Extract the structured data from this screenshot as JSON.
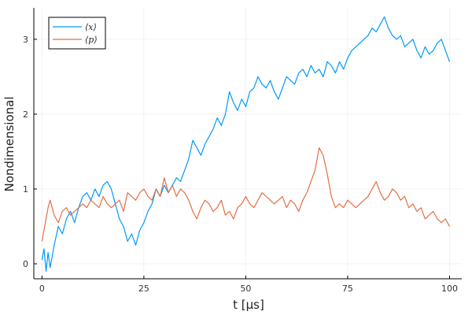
{
  "chart_data": {
    "type": "line",
    "title": "",
    "xlabel": "t [μs]",
    "ylabel": "Nondimensional",
    "xlim": [
      -2,
      103
    ],
    "ylim": [
      -0.2,
      3.42
    ],
    "xticks": [
      0,
      25,
      50,
      75,
      100
    ],
    "yticks": [
      0,
      1,
      2,
      3
    ],
    "grid": true,
    "legend_position": "top-left",
    "series": [
      {
        "name": "⟨x⟩",
        "color": "#009AFA",
        "x": [
          0,
          0.5,
          1,
          1.5,
          2,
          3,
          4,
          5,
          6,
          7,
          8,
          9,
          10,
          11,
          12,
          13,
          14,
          15,
          16,
          17,
          18,
          19,
          20,
          21,
          22,
          23,
          24,
          25,
          26,
          27,
          28,
          29,
          30,
          31,
          32,
          33,
          34,
          35,
          36,
          37,
          38,
          39,
          40,
          41,
          42,
          43,
          44,
          45,
          46,
          47,
          48,
          49,
          50,
          51,
          52,
          53,
          54,
          55,
          56,
          57,
          58,
          59,
          60,
          61,
          62,
          63,
          64,
          65,
          66,
          67,
          68,
          69,
          70,
          71,
          72,
          73,
          74,
          75,
          76,
          77,
          78,
          79,
          80,
          81,
          82,
          83,
          84,
          85,
          86,
          87,
          88,
          89,
          90,
          91,
          92,
          93,
          94,
          95,
          96,
          97,
          98,
          99,
          100
        ],
        "values": [
          0.05,
          0.2,
          -0.1,
          0.15,
          -0.05,
          0.25,
          0.5,
          0.4,
          0.6,
          0.7,
          0.55,
          0.75,
          0.9,
          0.95,
          0.85,
          1.0,
          0.9,
          1.05,
          1.1,
          1.0,
          0.8,
          0.6,
          0.5,
          0.3,
          0.4,
          0.25,
          0.45,
          0.55,
          0.7,
          0.8,
          1.0,
          0.9,
          1.05,
          0.95,
          1.05,
          1.15,
          1.1,
          1.25,
          1.4,
          1.65,
          1.55,
          1.45,
          1.6,
          1.7,
          1.8,
          1.95,
          1.85,
          2.0,
          2.3,
          2.15,
          2.05,
          2.2,
          2.1,
          2.3,
          2.35,
          2.5,
          2.4,
          2.35,
          2.45,
          2.3,
          2.2,
          2.35,
          2.5,
          2.45,
          2.4,
          2.55,
          2.6,
          2.5,
          2.65,
          2.55,
          2.6,
          2.5,
          2.7,
          2.65,
          2.55,
          2.7,
          2.6,
          2.75,
          2.85,
          2.9,
          2.95,
          3.0,
          3.05,
          3.15,
          3.1,
          3.2,
          3.3,
          3.15,
          3.05,
          3.0,
          3.05,
          2.9,
          2.95,
          3.0,
          2.85,
          2.75,
          2.9,
          2.8,
          2.85,
          2.95,
          3.0,
          2.85,
          2.7
        ]
      },
      {
        "name": "⟨p⟩",
        "color": "#E26F46",
        "x": [
          0,
          0.5,
          1,
          1.5,
          2,
          3,
          4,
          5,
          6,
          7,
          8,
          9,
          10,
          11,
          12,
          13,
          14,
          15,
          16,
          17,
          18,
          19,
          20,
          21,
          22,
          23,
          24,
          25,
          26,
          27,
          28,
          29,
          30,
          31,
          32,
          33,
          34,
          35,
          36,
          37,
          38,
          39,
          40,
          41,
          42,
          43,
          44,
          45,
          46,
          47,
          48,
          49,
          50,
          51,
          52,
          53,
          54,
          55,
          56,
          57,
          58,
          59,
          60,
          61,
          62,
          63,
          64,
          65,
          66,
          67,
          68,
          69,
          70,
          71,
          72,
          73,
          74,
          75,
          76,
          77,
          78,
          79,
          80,
          81,
          82,
          83,
          84,
          85,
          86,
          87,
          88,
          89,
          90,
          91,
          92,
          93,
          94,
          95,
          96,
          97,
          98,
          99,
          100
        ],
        "values": [
          0.3,
          0.45,
          0.6,
          0.75,
          0.85,
          0.65,
          0.55,
          0.7,
          0.75,
          0.65,
          0.7,
          0.75,
          0.8,
          0.75,
          0.85,
          0.8,
          0.75,
          0.9,
          0.8,
          0.75,
          0.8,
          0.85,
          0.7,
          0.95,
          0.9,
          0.85,
          0.95,
          1.0,
          0.9,
          0.85,
          1.0,
          0.9,
          1.15,
          0.95,
          1.05,
          0.9,
          1.0,
          0.95,
          0.85,
          0.7,
          0.6,
          0.75,
          0.85,
          0.8,
          0.7,
          0.75,
          0.85,
          0.65,
          0.7,
          0.6,
          0.75,
          0.8,
          0.9,
          0.8,
          0.75,
          0.85,
          0.95,
          0.9,
          0.85,
          0.8,
          0.85,
          0.9,
          0.75,
          0.85,
          0.8,
          0.7,
          0.85,
          0.95,
          1.1,
          1.25,
          1.55,
          1.45,
          1.2,
          0.9,
          0.75,
          0.8,
          0.75,
          0.85,
          0.8,
          0.75,
          0.8,
          0.85,
          0.9,
          1.0,
          1.1,
          0.95,
          0.85,
          0.9,
          1.0,
          0.95,
          0.85,
          0.9,
          0.75,
          0.8,
          0.7,
          0.75,
          0.6,
          0.65,
          0.7,
          0.6,
          0.55,
          0.6,
          0.5
        ]
      }
    ]
  }
}
